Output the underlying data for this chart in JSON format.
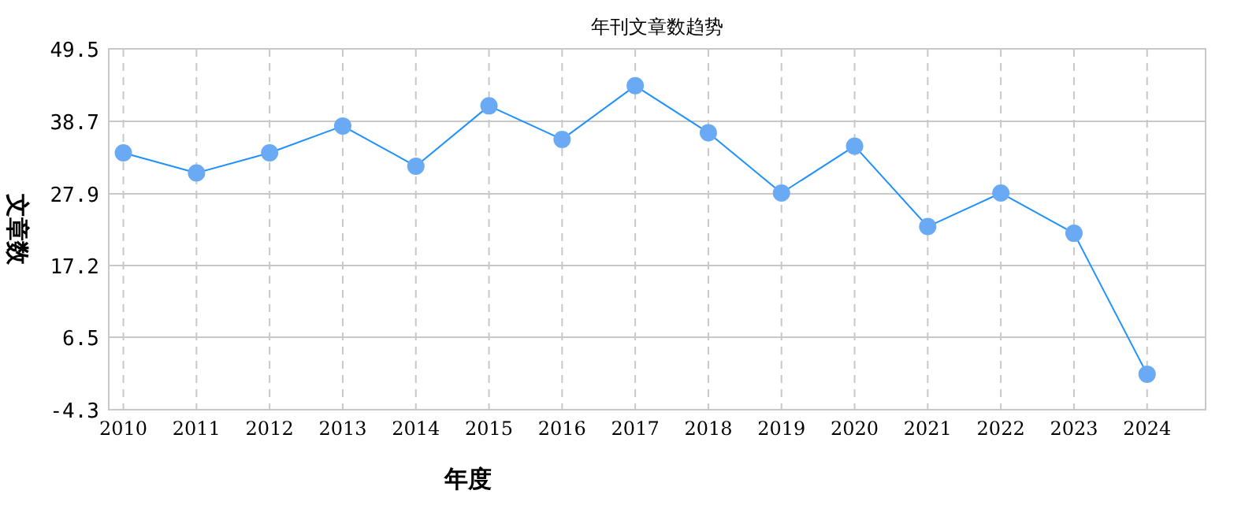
{
  "chart_data": {
    "type": "line",
    "title": "年刊文章数趋势",
    "xlabel": "年度",
    "ylabel": "文章数",
    "categories": [
      "2010",
      "2011",
      "2012",
      "2013",
      "2014",
      "2015",
      "2016",
      "2017",
      "2018",
      "2019",
      "2020",
      "2021",
      "2022",
      "2023",
      "2024"
    ],
    "series": [
      {
        "color": "#1e90ff",
        "values": [
          34,
          31,
          34,
          38,
          32,
          41,
          36,
          44,
          37,
          28,
          35,
          23,
          28,
          22,
          1
        ]
      }
    ],
    "ylim": [
      -4.3,
      49.5
    ],
    "yticks": [
      -4.3,
      6.5,
      17.2,
      27.9,
      38.7,
      49.5
    ],
    "grid": true,
    "marker": "circle",
    "line_style": "solid"
  }
}
